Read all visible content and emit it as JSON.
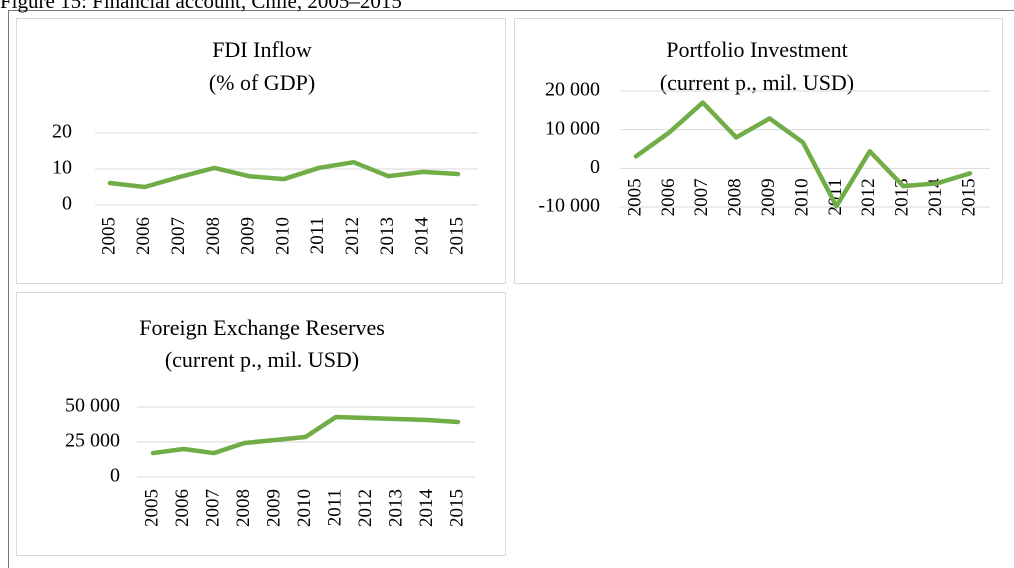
{
  "caption": "Figure 15: Financial account, Chile, 2005–2015",
  "chart_data": [
    {
      "type": "line",
      "title": "FDI Inflow",
      "subtitle": "(% of GDP)",
      "categories": [
        "2005",
        "2006",
        "2007",
        "2008",
        "2009",
        "2010",
        "2011",
        "2012",
        "2013",
        "2014",
        "2015"
      ],
      "series": [
        {
          "color": "#70ad47",
          "values": [
            6.1,
            5,
            7.8,
            10.3,
            8,
            7.2,
            10.3,
            11.9,
            8,
            9.2,
            8.6
          ]
        }
      ],
      "ylim": [
        0,
        20
      ],
      "yticks": [
        0,
        10,
        20
      ],
      "grid": true
    },
    {
      "type": "line",
      "title": "Portfolio Investment",
      "subtitle": "(current p., mil. USD)",
      "categories": [
        "2005",
        "2006",
        "2007",
        "2008",
        "2009",
        "2010",
        "2011",
        "2012",
        "2013",
        "2014",
        "2015"
      ],
      "series": [
        {
          "color": "#70ad47",
          "values": [
            3100,
            9300,
            17000,
            8000,
            12900,
            6700,
            -9800,
            4400,
            -4600,
            -3900,
            -1300
          ]
        }
      ],
      "ylim": [
        -10000,
        20000
      ],
      "yticks": [
        {
          "value": -10000,
          "label": "-10 000"
        },
        0,
        {
          "value": 10000,
          "label": "10 000"
        },
        {
          "value": 20000,
          "label": "20 000"
        }
      ],
      "grid": true
    },
    {
      "type": "line",
      "title": "Foreign Exchange Reserves",
      "subtitle": "(current p., mil. USD)",
      "categories": [
        "2005",
        "2006",
        "2007",
        "2008",
        "2009",
        "2010",
        "2011",
        "2012",
        "2013",
        "2014",
        "2015"
      ],
      "series": [
        {
          "color": "#70ad47",
          "values": [
            17100,
            20000,
            17100,
            24300,
            26400,
            28600,
            42900,
            42100,
            41400,
            40700,
            39300
          ]
        }
      ],
      "ylim": [
        0,
        50000
      ],
      "yticks": [
        0,
        {
          "value": 25000,
          "label": "25 000"
        },
        {
          "value": 50000,
          "label": "50 000"
        }
      ],
      "grid": true
    }
  ]
}
